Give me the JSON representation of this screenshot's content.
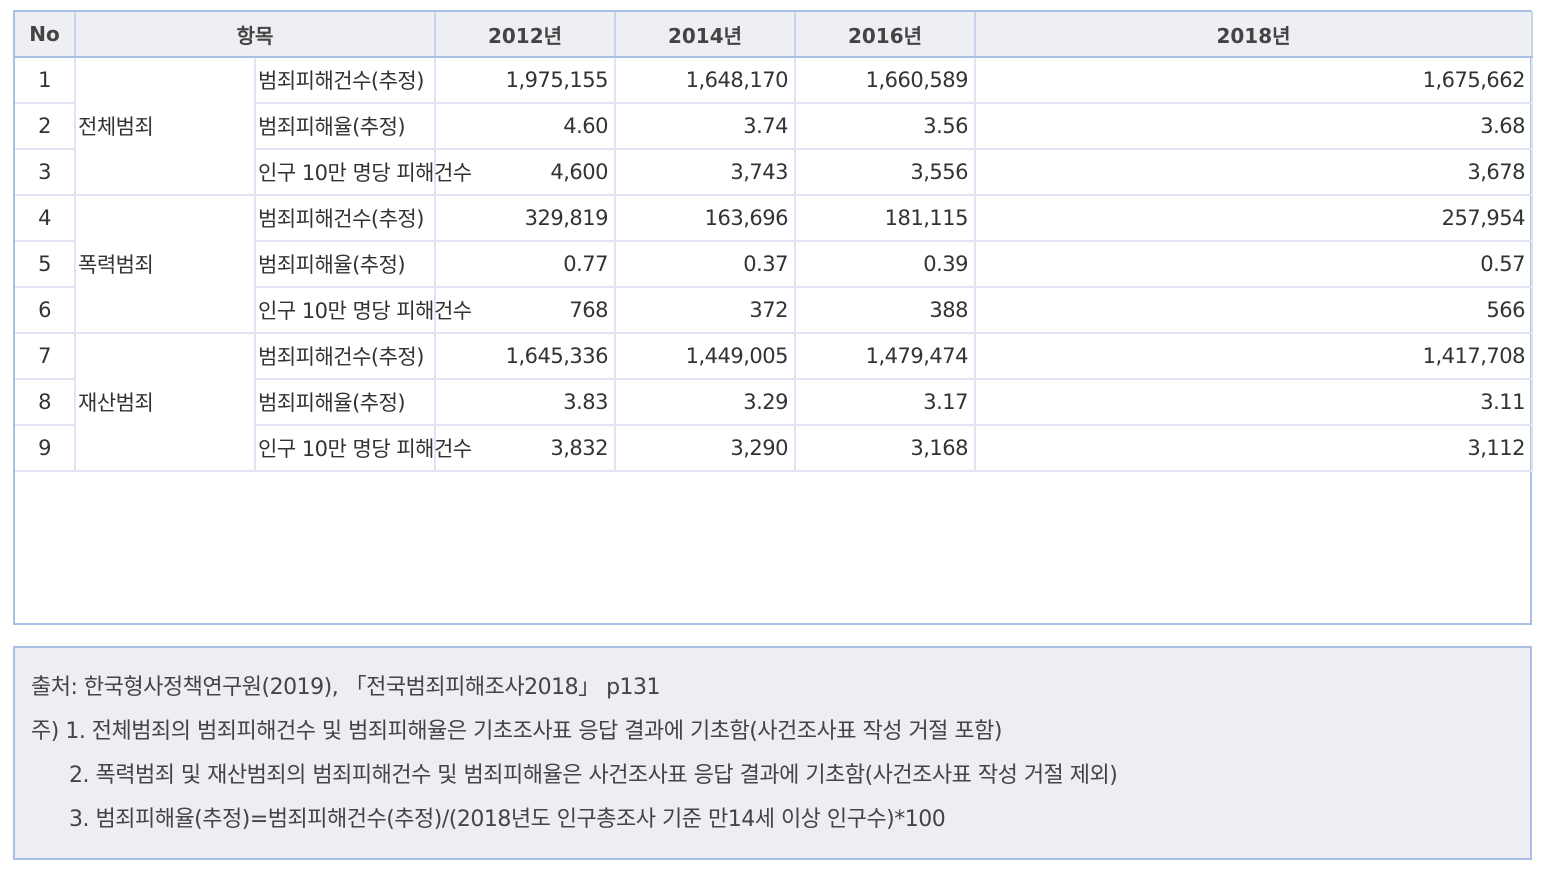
{
  "table": {
    "headers": {
      "no": "No",
      "item": "항목",
      "years": [
        "2012년",
        "2014년",
        "2016년",
        "2018년"
      ]
    },
    "groups": [
      {
        "category": "전체범죄"
      },
      {
        "category": "폭력범죄"
      },
      {
        "category": "재산범죄"
      }
    ],
    "rows": [
      {
        "no": "1",
        "sub": "범죄피해건수(추정)",
        "values": [
          "1,975,155",
          "1,648,170",
          "1,660,589",
          "1,675,662"
        ]
      },
      {
        "no": "2",
        "sub": "범죄피해율(추정)",
        "values": [
          "4.60",
          "3.74",
          "3.56",
          "3.68"
        ]
      },
      {
        "no": "3",
        "sub": "인구 10만 명당 피해건수",
        "values": [
          "4,600",
          "3,743",
          "3,556",
          "3,678"
        ]
      },
      {
        "no": "4",
        "sub": "범죄피해건수(추정)",
        "values": [
          "329,819",
          "163,696",
          "181,115",
          "257,954"
        ]
      },
      {
        "no": "5",
        "sub": "범죄피해율(추정)",
        "values": [
          "0.77",
          "0.37",
          "0.39",
          "0.57"
        ]
      },
      {
        "no": "6",
        "sub": "인구 10만 명당 피해건수",
        "values": [
          "768",
          "372",
          "388",
          "566"
        ]
      },
      {
        "no": "7",
        "sub": "범죄피해건수(추정)",
        "values": [
          "1,645,336",
          "1,449,005",
          "1,479,474",
          "1,417,708"
        ]
      },
      {
        "no": "8",
        "sub": "범죄피해율(추정)",
        "values": [
          "3.83",
          "3.29",
          "3.17",
          "3.11"
        ]
      },
      {
        "no": "9",
        "sub": "인구 10만 명당 피해건수",
        "values": [
          "3,832",
          "3,290",
          "3,168",
          "3,112"
        ]
      }
    ]
  },
  "notes": {
    "source": "출처: 한국형사정책연구원(2019), 「전국범죄피해조사2018」 p131",
    "note1": "주) 1. 전체범죄의 범죄피해건수 및 범죄피해율은 기초조사표 응답 결과에 기초함(사건조사표 작성 거절 포함)",
    "note2": "2. 폭력범죄 및 재산범죄의 범죄피해건수 및 범죄피해율은 사건조사표 응답 결과에 기초함(사건조사표 작성 거절 제외)",
    "note3": "3. 범죄피해율(추정)=범죄피해건수(추정)/(2018년도 인구총조사 기준 만14세 이상 인구수)*100"
  }
}
